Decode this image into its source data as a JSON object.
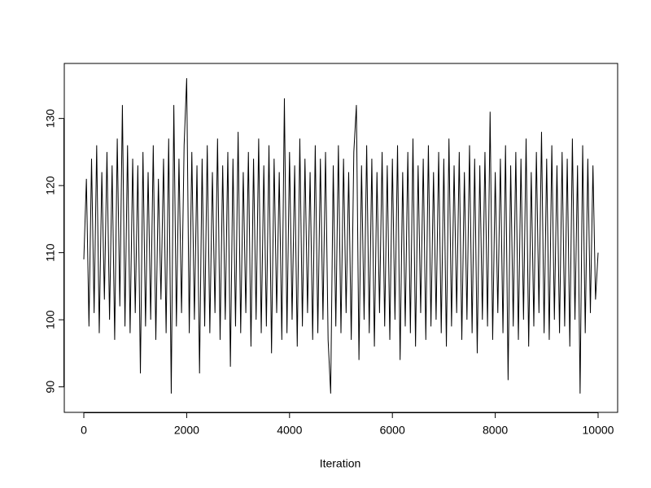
{
  "chart_data": {
    "type": "line",
    "xlabel": "Iteration",
    "color": "#000000",
    "xlim": [
      -380,
      10380
    ],
    "ylim": [
      86.2,
      138.2
    ],
    "xticks": [
      0,
      2000,
      4000,
      6000,
      8000,
      10000
    ],
    "yticks": [
      90,
      100,
      110,
      120,
      130
    ],
    "x": [
      0,
      50,
      100,
      150,
      200,
      250,
      300,
      350,
      400,
      450,
      500,
      550,
      600,
      650,
      700,
      750,
      800,
      850,
      900,
      950,
      1000,
      1050,
      1100,
      1150,
      1200,
      1250,
      1300,
      1350,
      1400,
      1450,
      1500,
      1550,
      1600,
      1650,
      1700,
      1750,
      1800,
      1850,
      1900,
      1950,
      2000,
      2050,
      2100,
      2150,
      2200,
      2250,
      2300,
      2350,
      2400,
      2450,
      2500,
      2550,
      2600,
      2650,
      2700,
      2750,
      2800,
      2850,
      2900,
      2950,
      3000,
      3050,
      3100,
      3150,
      3200,
      3250,
      3300,
      3350,
      3400,
      3450,
      3500,
      3550,
      3600,
      3650,
      3700,
      3750,
      3800,
      3850,
      3900,
      3950,
      4000,
      4050,
      4100,
      4150,
      4200,
      4250,
      4300,
      4350,
      4400,
      4450,
      4500,
      4550,
      4600,
      4650,
      4700,
      4750,
      4800,
      4850,
      4900,
      4950,
      5000,
      5050,
      5100,
      5150,
      5200,
      5250,
      5300,
      5350,
      5400,
      5450,
      5500,
      5550,
      5600,
      5650,
      5700,
      5750,
      5800,
      5850,
      5900,
      5950,
      6000,
      6050,
      6100,
      6150,
      6200,
      6250,
      6300,
      6350,
      6400,
      6450,
      6500,
      6550,
      6600,
      6650,
      6700,
      6750,
      6800,
      6850,
      6900,
      6950,
      7000,
      7050,
      7100,
      7150,
      7200,
      7250,
      7300,
      7350,
      7400,
      7450,
      7500,
      7550,
      7600,
      7650,
      7700,
      7750,
      7800,
      7850,
      7900,
      7950,
      8000,
      8050,
      8100,
      8150,
      8200,
      8250,
      8300,
      8350,
      8400,
      8450,
      8500,
      8550,
      8600,
      8650,
      8700,
      8750,
      8800,
      8850,
      8900,
      8950,
      9000,
      9050,
      9100,
      9150,
      9200,
      9250,
      9300,
      9350,
      9400,
      9450,
      9500,
      9550,
      9600,
      9650,
      9700,
      9750,
      9800,
      9850,
      9900,
      9950,
      10000
    ],
    "values": [
      109,
      121,
      99,
      124,
      101,
      126,
      98,
      122,
      103,
      125,
      100,
      123,
      97,
      127,
      102,
      132,
      99,
      126,
      98,
      124,
      101,
      123,
      92,
      125,
      99,
      122,
      100,
      126,
      97,
      121,
      103,
      124,
      98,
      127,
      89,
      132,
      99,
      124,
      101,
      126,
      136,
      98,
      125,
      100,
      123,
      92,
      124,
      99,
      126,
      98,
      122,
      101,
      127,
      97,
      123,
      100,
      125,
      93,
      124,
      99,
      128,
      98,
      122,
      101,
      125,
      96,
      124,
      100,
      127,
      98,
      123,
      99,
      126,
      95,
      124,
      101,
      122,
      97,
      133,
      98,
      125,
      100,
      123,
      96,
      127,
      99,
      124,
      101,
      122,
      97,
      126,
      98,
      124,
      100,
      125,
      97,
      89,
      123,
      99,
      126,
      98,
      124,
      101,
      122,
      97,
      125,
      132,
      94,
      123,
      100,
      126,
      98,
      124,
      96,
      122,
      101,
      125,
      99,
      123,
      97,
      124,
      100,
      126,
      94,
      122,
      99,
      125,
      98,
      127,
      96,
      123,
      101,
      124,
      97,
      126,
      99,
      122,
      100,
      125,
      98,
      124,
      96,
      127,
      99,
      123,
      101,
      125,
      97,
      122,
      100,
      126,
      98,
      124,
      95,
      123,
      100,
      125,
      99,
      131,
      97,
      122,
      101,
      124,
      98,
      126,
      91,
      123,
      99,
      125,
      97,
      124,
      100,
      127,
      96,
      122,
      99,
      125,
      101,
      128,
      98,
      124,
      97,
      126,
      100,
      123,
      98,
      125,
      99,
      124,
      96,
      127,
      100,
      123,
      89,
      126,
      98,
      124,
      101,
      123,
      103,
      110
    ]
  }
}
